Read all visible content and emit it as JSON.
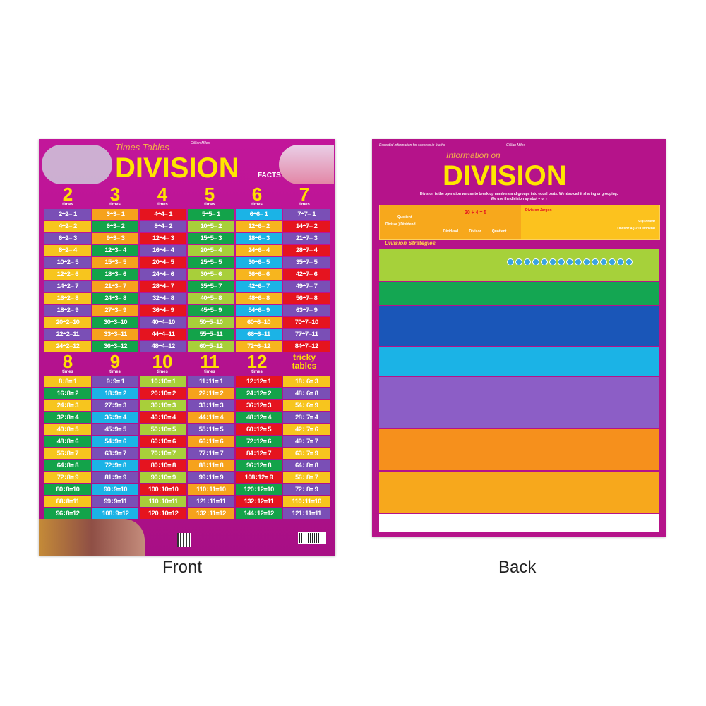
{
  "front": {
    "brand": "Gillian Miles",
    "subtitle": "Times Tables",
    "title": "DIVISION",
    "title_suffix": "FACTS",
    "times_label": "times",
    "top_heads": [
      "2",
      "3",
      "4",
      "5",
      "6",
      "7"
    ],
    "bottom_heads": [
      "8",
      "9",
      "10",
      "11",
      "12",
      "tricky tables"
    ],
    "top_columns": [
      {
        "colors": [
          "#7a4fb6",
          "#f7c51e"
        ],
        "cells": [
          "2÷2= 1",
          "4÷2= 2",
          "6÷2= 3",
          "8÷2= 4",
          "10÷2= 5",
          "12÷2= 6",
          "14÷2= 7",
          "16÷2= 8",
          "18÷2= 9",
          "20÷2=10",
          "22÷2=11",
          "24÷2=12"
        ]
      },
      {
        "colors": [
          "#f6a21c",
          "#13a34a"
        ],
        "cells": [
          "3÷3= 1",
          "6÷3= 2",
          "9÷3= 3",
          "12÷3= 4",
          "15÷3= 5",
          "18÷3= 6",
          "21÷3= 7",
          "24÷3= 8",
          "27÷3= 9",
          "30÷3=10",
          "33÷3=11",
          "36÷3=12"
        ]
      },
      {
        "colors": [
          "#e5141f",
          "#7a4fb6"
        ],
        "cells": [
          "4÷4= 1",
          "8÷4= 2",
          "12÷4= 3",
          "16÷4= 4",
          "20÷4= 5",
          "24÷4= 6",
          "28÷4= 7",
          "32÷4= 8",
          "36÷4= 9",
          "40÷4=10",
          "44÷4=11",
          "48÷4=12"
        ]
      },
      {
        "colors": [
          "#13a34a",
          "#a8cf3a"
        ],
        "cells": [
          "5÷5= 1",
          "10÷5= 2",
          "15÷5= 3",
          "20÷5= 4",
          "25÷5= 5",
          "30÷5= 6",
          "35÷5= 7",
          "40÷5= 8",
          "45÷5= 9",
          "50÷5=10",
          "55÷5=11",
          "60÷5=12"
        ]
      },
      {
        "colors": [
          "#1bb3e6",
          "#f7b51e"
        ],
        "cells": [
          "6÷6= 1",
          "12÷6= 2",
          "18÷6= 3",
          "24÷6= 4",
          "30÷6= 5",
          "36÷6= 6",
          "42÷6= 7",
          "48÷6= 8",
          "54÷6= 9",
          "60÷6=10",
          "66÷6=11",
          "72÷6=12"
        ]
      },
      {
        "colors": [
          "#7a4fb6",
          "#e5141f"
        ],
        "cells": [
          "7÷7= 1",
          "14÷7= 2",
          "21÷7= 3",
          "28÷7= 4",
          "35÷7= 5",
          "42÷7= 6",
          "49÷7= 7",
          "56÷7= 8",
          "63÷7= 9",
          "70÷7=10",
          "77÷7=11",
          "84÷7=12"
        ]
      }
    ],
    "bottom_columns": [
      {
        "colors": [
          "#f7c51e",
          "#13a34a"
        ],
        "cells": [
          "8÷8= 1",
          "16÷8= 2",
          "24÷8= 3",
          "32÷8= 4",
          "40÷8= 5",
          "48÷8= 6",
          "56÷8= 7",
          "64÷8= 8",
          "72÷8= 9",
          "80÷8=10",
          "88÷8=11",
          "96÷8=12"
        ]
      },
      {
        "colors": [
          "#7a4fb6",
          "#1bb3e6"
        ],
        "cells": [
          "9÷9= 1",
          "18÷9= 2",
          "27÷9= 3",
          "36÷9= 4",
          "45÷9= 5",
          "54÷9= 6",
          "63÷9= 7",
          "72÷9= 8",
          "81÷9= 9",
          "90÷9=10",
          "99÷9=11",
          "108÷9=12"
        ]
      },
      {
        "colors": [
          "#a8cf3a",
          "#e5141f"
        ],
        "cells": [
          "10÷10= 1",
          "20÷10= 2",
          "30÷10= 3",
          "40÷10= 4",
          "50÷10= 5",
          "60÷10= 6",
          "70÷10= 7",
          "80÷10= 8",
          "90÷10= 9",
          "100÷10=10",
          "110÷10=11",
          "120÷10=12"
        ]
      },
      {
        "colors": [
          "#7a4fb6",
          "#f6a21c"
        ],
        "cells": [
          "11÷11= 1",
          "22÷11= 2",
          "33÷11= 3",
          "44÷11= 4",
          "55÷11= 5",
          "66÷11= 6",
          "77÷11= 7",
          "88÷11= 8",
          "99÷11= 9",
          "110÷11=10",
          "121÷11=11",
          "132÷11=12"
        ]
      },
      {
        "colors": [
          "#e5141f",
          "#13a34a"
        ],
        "cells": [
          "12÷12= 1",
          "24÷12= 2",
          "36÷12= 3",
          "48÷12= 4",
          "60÷12= 5",
          "72÷12= 6",
          "84÷12= 7",
          "96÷12= 8",
          "108÷12= 9",
          "120÷12=10",
          "132÷12=11",
          "144÷12=12"
        ]
      },
      {
        "colors": [
          "#f7c51e",
          "#7a4fb6"
        ],
        "cells": [
          "18÷ 6= 3",
          "48÷ 6= 8",
          "54÷ 6= 9",
          "28÷ 7= 4",
          "42÷ 7= 6",
          "49÷ 7= 7",
          "63÷ 7= 9",
          "64÷ 8= 8",
          "56÷ 8= 7",
          "72÷ 8= 9",
          "110÷11=10",
          "121÷11=11"
        ]
      }
    ]
  },
  "back": {
    "tagline": "Essential information for success in Maths",
    "brand": "Gillian Miles",
    "subtitle": "Information on",
    "title": "DIVISION",
    "intro": "Division is the operation we use to break up numbers and groups into equal parts. We also call it sharing or grouping.",
    "symbol_line": "We use the division symbol ÷ or )",
    "quotient": "Quotient",
    "divisor_dividend": "Divisor ) Dividend",
    "equation": "20 ÷ 4 = 5",
    "eq_labels": [
      "Dividend",
      "Divisor",
      "Quotient"
    ],
    "jargon_title": "Division Jargon",
    "long_quotient": "5 Quotient",
    "long_form": "Divisor 4 ) 20 Dividend",
    "strategies": "Division Strategies"
  },
  "captions": {
    "front": "Front",
    "back": "Back"
  }
}
